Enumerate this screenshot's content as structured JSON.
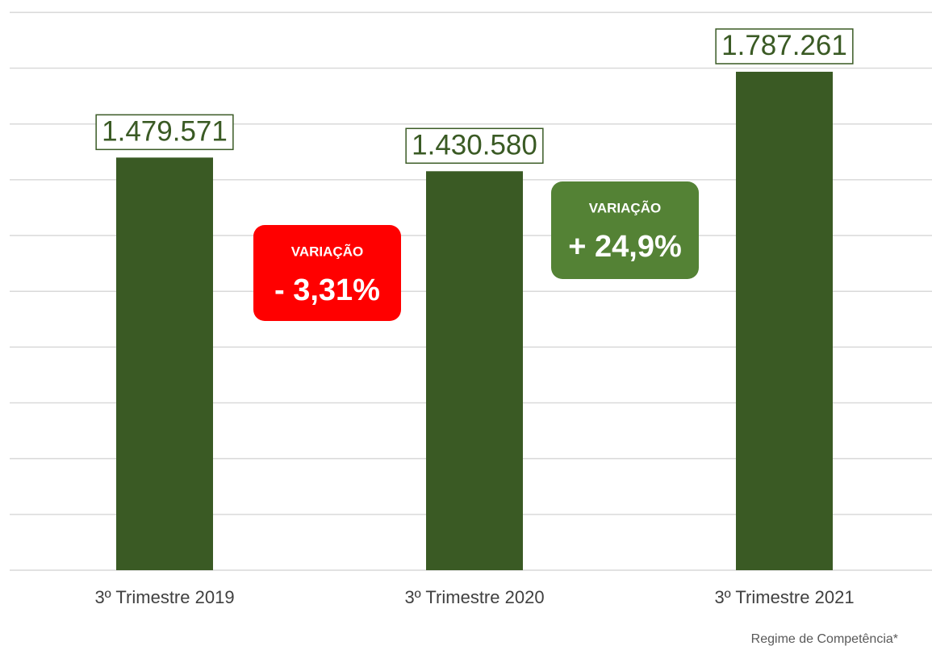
{
  "chart_data": {
    "type": "bar",
    "categories": [
      "3º Trimestre 2019",
      "3º Trimestre 2020",
      "3º Trimestre 2021"
    ],
    "values": [
      1479571,
      1430580,
      1787261
    ],
    "value_labels": [
      "1.479.571",
      "1.430.580",
      "1.787.261"
    ],
    "color": "#3a5a24",
    "ylim": [
      0,
      2000000
    ],
    "yticks": [
      0,
      200000,
      400000,
      600000,
      800000,
      1000000,
      1200000,
      1400000,
      1600000,
      1800000,
      2000000
    ],
    "grid": true,
    "annotations": [
      {
        "title": "VARIAÇÃO",
        "text": "- 3,31%",
        "color": "#ff0000"
      },
      {
        "title": "VARIAÇÃO",
        "text": "+ 24,9%",
        "color": "#548235"
      }
    ],
    "footnote": "Regime de Competência*"
  }
}
